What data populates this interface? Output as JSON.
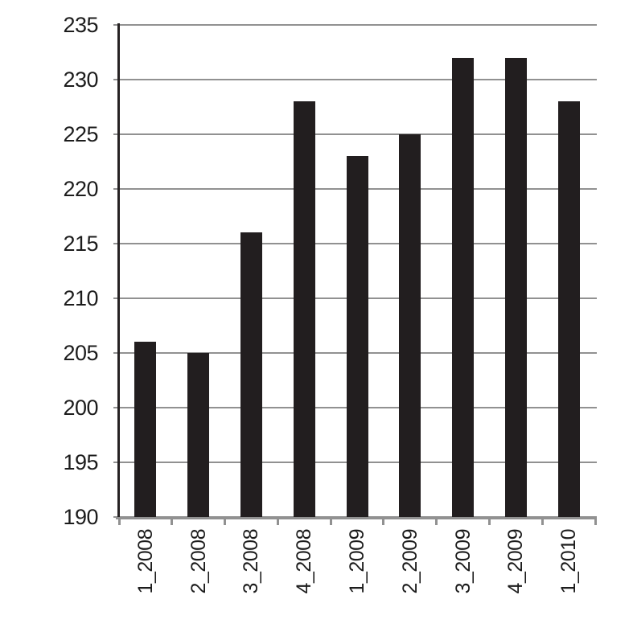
{
  "chart_data": {
    "type": "bar",
    "title": "",
    "xlabel": "",
    "ylabel": "",
    "categories": [
      "1_2008",
      "2_2008",
      "3_2008",
      "4_2008",
      "1_2009",
      "2_2009",
      "3_2009",
      "4_2009",
      "1_2010"
    ],
    "values": [
      206,
      205,
      216,
      228,
      223,
      225,
      232,
      232,
      228
    ],
    "ylim": [
      190,
      235
    ],
    "yticks": [
      190,
      195,
      200,
      205,
      210,
      215,
      220,
      225,
      230,
      235
    ],
    "grid": "horizontal",
    "legend": "none",
    "x_label_rotation": -90,
    "bar_color": "#221e1f",
    "gridline_color": "#919191",
    "x_axis_color": "#919191",
    "y_axis_color": "#262223",
    "text_color": "#1c1c1c",
    "background_color": "#ffffff"
  }
}
